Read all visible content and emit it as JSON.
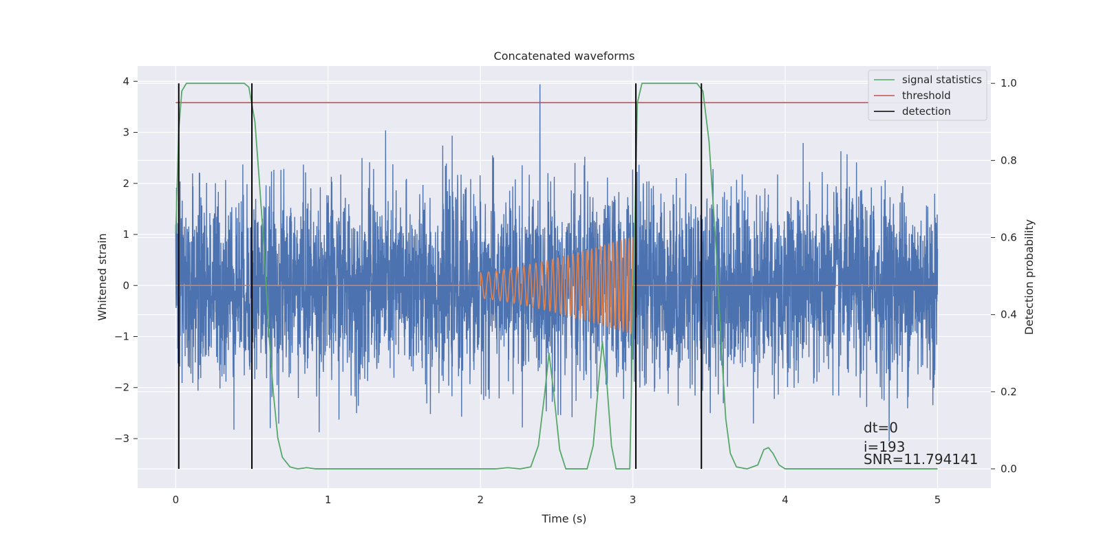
{
  "chart_data": {
    "type": "line",
    "title": "Concatenated waveforms",
    "xlabel": "Time (s)",
    "ylabel": "Whitened strain",
    "ylabel_right": "Detection probability",
    "xlim": [
      -0.25,
      5.35
    ],
    "ylim": [
      -3.97,
      4.3
    ],
    "ylim_right": [
      -0.05,
      1.045
    ],
    "x_ticks": [
      0,
      1,
      2,
      3,
      4,
      5
    ],
    "x_tick_labels": [
      "0",
      "1",
      "2",
      "3",
      "4",
      "5"
    ],
    "y_ticks": [
      -3,
      -2,
      -1,
      0,
      1,
      2,
      3,
      4
    ],
    "y_tick_labels": [
      "−3",
      "−2",
      "−1",
      "0",
      "1",
      "2",
      "3",
      "4"
    ],
    "y_ticks_right": [
      0.0,
      0.2,
      0.4,
      0.6,
      0.8,
      1.0
    ],
    "y_tick_labels_right": [
      "0.0",
      "0.2",
      "0.4",
      "0.6",
      "0.8",
      "1.0"
    ],
    "grid": true,
    "legend_position": "top-right",
    "legend": [
      {
        "label": "signal statistics",
        "color": "#55a868"
      },
      {
        "label": "threshold",
        "color": "#c44e52"
      },
      {
        "label": "detection",
        "color": "#000000"
      }
    ],
    "strain": {
      "color": "#4c72b0",
      "x_range": [
        0,
        5
      ],
      "std": 0.92
    },
    "injection": {
      "color": "#dd8452",
      "t_start": 2.0,
      "t_end": 3.0,
      "amp_start": 0.25,
      "amp_end": 0.95
    },
    "threshold": {
      "value": 0.95,
      "x_range": [
        0,
        5.1
      ]
    },
    "signal_statistics": {
      "points": [
        [
          0.0,
          0.61
        ],
        [
          0.02,
          0.88
        ],
        [
          0.04,
          0.98
        ],
        [
          0.07,
          1.0
        ],
        [
          0.45,
          1.0
        ],
        [
          0.48,
          0.99
        ],
        [
          0.52,
          0.9
        ],
        [
          0.55,
          0.74
        ],
        [
          0.58,
          0.57
        ],
        [
          0.61,
          0.36
        ],
        [
          0.64,
          0.2
        ],
        [
          0.67,
          0.08
        ],
        [
          0.7,
          0.03
        ],
        [
          0.75,
          0.005
        ],
        [
          0.8,
          0.0
        ],
        [
          0.86,
          0.003
        ],
        [
          0.92,
          0.0
        ],
        [
          2.1,
          0.0
        ],
        [
          2.18,
          0.003
        ],
        [
          2.26,
          0.0
        ],
        [
          2.33,
          0.005
        ],
        [
          2.38,
          0.06
        ],
        [
          2.42,
          0.19
        ],
        [
          2.45,
          0.3
        ],
        [
          2.48,
          0.2
        ],
        [
          2.52,
          0.05
        ],
        [
          2.56,
          0.0
        ],
        [
          2.7,
          0.0
        ],
        [
          2.74,
          0.06
        ],
        [
          2.77,
          0.2
        ],
        [
          2.8,
          0.33
        ],
        [
          2.83,
          0.22
        ],
        [
          2.86,
          0.06
        ],
        [
          2.89,
          0.0
        ],
        [
          2.98,
          0.0
        ],
        [
          3.01,
          0.58
        ],
        [
          3.03,
          0.95
        ],
        [
          3.06,
          1.0
        ],
        [
          3.42,
          1.0
        ],
        [
          3.46,
          0.98
        ],
        [
          3.5,
          0.85
        ],
        [
          3.55,
          0.55
        ],
        [
          3.58,
          0.32
        ],
        [
          3.61,
          0.13
        ],
        [
          3.64,
          0.04
        ],
        [
          3.68,
          0.005
        ],
        [
          3.75,
          0.0
        ],
        [
          3.82,
          0.01
        ],
        [
          3.86,
          0.05
        ],
        [
          3.89,
          0.055
        ],
        [
          3.92,
          0.04
        ],
        [
          3.96,
          0.01
        ],
        [
          4.0,
          0.0
        ],
        [
          5.0,
          0.0
        ]
      ]
    },
    "detections": [
      0.02,
      0.5,
      3.02,
      3.45
    ],
    "annotation": {
      "lines": [
        "dt=0",
        "i=193",
        "SNR=11.794141"
      ]
    }
  }
}
